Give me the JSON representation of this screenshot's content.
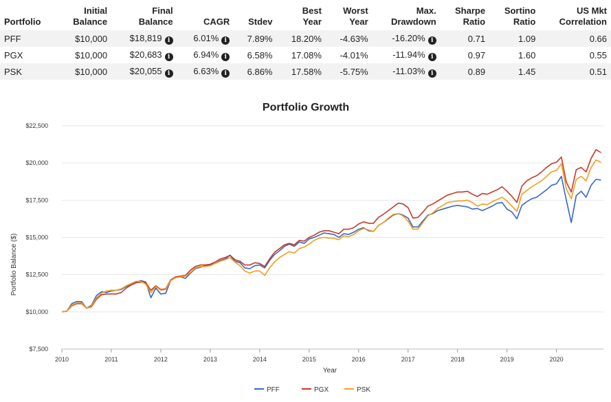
{
  "table": {
    "headers": [
      {
        "l1": "",
        "l2": "Portfolio",
        "align": "l"
      },
      {
        "l1": "Initial",
        "l2": "Balance",
        "align": "r"
      },
      {
        "l1": "Final",
        "l2": "Balance",
        "align": "r"
      },
      {
        "l1": "",
        "l2": "CAGR",
        "align": "r"
      },
      {
        "l1": "",
        "l2": "Stdev",
        "align": "r"
      },
      {
        "l1": "Best",
        "l2": "Year",
        "align": "r"
      },
      {
        "l1": "Worst",
        "l2": "Year",
        "align": "r"
      },
      {
        "l1": "Max.",
        "l2": "Drawdown",
        "align": "r"
      },
      {
        "l1": "Sharpe",
        "l2": "Ratio",
        "align": "r"
      },
      {
        "l1": "Sortino",
        "l2": "Ratio",
        "align": "r"
      },
      {
        "l1": "US Mkt",
        "l2": "Correlation",
        "align": "r"
      }
    ],
    "rows": [
      {
        "portfolio": "PFF",
        "initial": "$10,000",
        "final": "$18,819",
        "cagr": "6.01%",
        "stdev": "7.89%",
        "best": "18.20%",
        "worst": "-4.63%",
        "maxdd": "-16.20%",
        "sharpe": "0.71",
        "sortino": "1.09",
        "corr": "0.66"
      },
      {
        "portfolio": "PGX",
        "initial": "$10,000",
        "final": "$20,683",
        "cagr": "6.94%",
        "stdev": "6.58%",
        "best": "17.08%",
        "worst": "-4.01%",
        "maxdd": "-11.94%",
        "sharpe": "0.97",
        "sortino": "1.60",
        "corr": "0.55"
      },
      {
        "portfolio": "PSK",
        "initial": "$10,000",
        "final": "$20,055",
        "cagr": "6.63%",
        "stdev": "6.86%",
        "best": "17.58%",
        "worst": "-5.75%",
        "maxdd": "-11.03%",
        "sharpe": "0.89",
        "sortino": "1.45",
        "corr": "0.51"
      }
    ],
    "info_icon": "info-circle-icon"
  },
  "chart_data": {
    "type": "line",
    "title": "Portfolio Growth",
    "xlabel": "Year",
    "ylabel": "Portfolio Balance ($)",
    "ylim": [
      7500,
      22500
    ],
    "xlim": [
      2010,
      2020.95
    ],
    "yticks": [
      7500,
      10000,
      12500,
      15000,
      17500,
      20000,
      22500
    ],
    "ytick_labels": [
      "$7,500",
      "$10,000",
      "$12,500",
      "$15,000",
      "$17,500",
      "$20,000",
      "$22,500"
    ],
    "xticks": [
      2010,
      2011,
      2012,
      2013,
      2014,
      2015,
      2016,
      2017,
      2018,
      2019,
      2020
    ],
    "xtick_labels": [
      "2010",
      "2011",
      "2012",
      "2013",
      "2014",
      "2015",
      "2016",
      "2017",
      "2018",
      "2019",
      "2020"
    ],
    "grid": "horizontal",
    "legend_position": "bottom-center",
    "series": [
      {
        "name": "PFF",
        "color": "#3566c4",
        "x": [
          2010.0,
          2010.1,
          2010.2,
          2010.3,
          2010.4,
          2010.5,
          2010.6,
          2010.7,
          2010.8,
          2010.9,
          2011.0,
          2011.1,
          2011.2,
          2011.3,
          2011.4,
          2011.5,
          2011.6,
          2011.7,
          2011.8,
          2011.9,
          2012.0,
          2012.1,
          2012.2,
          2012.3,
          2012.4,
          2012.5,
          2012.6,
          2012.7,
          2012.8,
          2012.9,
          2013.0,
          2013.1,
          2013.2,
          2013.3,
          2013.4,
          2013.5,
          2013.6,
          2013.7,
          2013.8,
          2013.9,
          2014.0,
          2014.1,
          2014.2,
          2014.3,
          2014.4,
          2014.5,
          2014.6,
          2014.7,
          2014.8,
          2014.9,
          2015.0,
          2015.1,
          2015.2,
          2015.3,
          2015.4,
          2015.5,
          2015.6,
          2015.7,
          2015.8,
          2015.9,
          2016.0,
          2016.1,
          2016.2,
          2016.3,
          2016.4,
          2016.5,
          2016.6,
          2016.7,
          2016.8,
          2016.9,
          2017.0,
          2017.1,
          2017.2,
          2017.3,
          2017.4,
          2017.5,
          2017.6,
          2017.7,
          2017.8,
          2017.9,
          2018.0,
          2018.1,
          2018.2,
          2018.3,
          2018.4,
          2018.5,
          2018.6,
          2018.7,
          2018.8,
          2018.9,
          2019.0,
          2019.1,
          2019.2,
          2019.3,
          2019.4,
          2019.5,
          2019.6,
          2019.7,
          2019.8,
          2019.9,
          2020.0,
          2020.1,
          2020.2,
          2020.3,
          2020.4,
          2020.5,
          2020.6,
          2020.7,
          2020.8,
          2020.9
        ],
        "y": [
          10000,
          10050,
          10550,
          10700,
          10680,
          10250,
          10450,
          11100,
          11350,
          11300,
          11400,
          11450,
          11500,
          11700,
          11850,
          12000,
          12100,
          12000,
          10950,
          11600,
          11200,
          11250,
          12100,
          12300,
          12350,
          12250,
          12600,
          12900,
          13000,
          13100,
          13150,
          13250,
          13450,
          13550,
          13800,
          13400,
          13300,
          12950,
          12900,
          13100,
          13150,
          12950,
          13450,
          13850,
          14100,
          14400,
          14550,
          14400,
          14700,
          14600,
          14900,
          15000,
          15150,
          15300,
          15250,
          15200,
          15000,
          15250,
          15200,
          15350,
          15550,
          15650,
          15450,
          15400,
          15800,
          16000,
          16250,
          16500,
          16600,
          16500,
          16300,
          15700,
          15700,
          16100,
          16500,
          16600,
          16800,
          16900,
          17000,
          17100,
          17150,
          17100,
          17050,
          16900,
          16950,
          16800,
          16950,
          17100,
          17300,
          17350,
          16900,
          16700,
          16250,
          17150,
          17400,
          17600,
          17700,
          17950,
          18200,
          18500,
          18600,
          19100,
          17500,
          16000,
          17800,
          18100,
          17700,
          18500,
          18900,
          18850
        ]
      },
      {
        "name": "PGX",
        "color": "#c6382a",
        "x": [
          2010.0,
          2010.1,
          2010.2,
          2010.3,
          2010.4,
          2010.5,
          2010.6,
          2010.7,
          2010.8,
          2010.9,
          2011.0,
          2011.1,
          2011.2,
          2011.3,
          2011.4,
          2011.5,
          2011.6,
          2011.7,
          2011.8,
          2011.9,
          2012.0,
          2012.1,
          2012.2,
          2012.3,
          2012.4,
          2012.5,
          2012.6,
          2012.7,
          2012.8,
          2012.9,
          2013.0,
          2013.1,
          2013.2,
          2013.3,
          2013.4,
          2013.5,
          2013.6,
          2013.7,
          2013.8,
          2013.9,
          2014.0,
          2014.1,
          2014.2,
          2014.3,
          2014.4,
          2014.5,
          2014.6,
          2014.7,
          2014.8,
          2014.9,
          2015.0,
          2015.1,
          2015.2,
          2015.3,
          2015.4,
          2015.5,
          2015.6,
          2015.7,
          2015.8,
          2015.9,
          2016.0,
          2016.1,
          2016.2,
          2016.3,
          2016.4,
          2016.5,
          2016.6,
          2016.7,
          2016.8,
          2016.9,
          2017.0,
          2017.1,
          2017.2,
          2017.3,
          2017.4,
          2017.5,
          2017.6,
          2017.7,
          2017.8,
          2017.9,
          2018.0,
          2018.1,
          2018.2,
          2018.3,
          2018.4,
          2018.5,
          2018.6,
          2018.7,
          2018.8,
          2018.9,
          2019.0,
          2019.1,
          2019.2,
          2019.3,
          2019.4,
          2019.5,
          2019.6,
          2019.7,
          2019.8,
          2019.9,
          2020.0,
          2020.1,
          2020.2,
          2020.3,
          2020.4,
          2020.5,
          2020.6,
          2020.7,
          2020.8,
          2020.9
        ],
        "y": [
          10000,
          10050,
          10400,
          10550,
          10550,
          10250,
          10350,
          10850,
          11150,
          11200,
          11200,
          11200,
          11300,
          11600,
          11800,
          11950,
          12000,
          11950,
          11450,
          11750,
          11500,
          11550,
          12150,
          12350,
          12400,
          12450,
          12800,
          13050,
          13150,
          13150,
          13200,
          13350,
          13550,
          13650,
          13800,
          13500,
          13400,
          13150,
          13150,
          13300,
          13250,
          13050,
          13550,
          14000,
          14250,
          14500,
          14600,
          14500,
          14800,
          14750,
          15000,
          15150,
          15350,
          15450,
          15450,
          15350,
          15250,
          15550,
          15550,
          15650,
          15900,
          16050,
          15950,
          15950,
          16350,
          16550,
          16800,
          17050,
          17300,
          17250,
          17000,
          16300,
          16350,
          16700,
          17100,
          17250,
          17450,
          17650,
          17850,
          17950,
          18050,
          18050,
          18100,
          17900,
          17750,
          17950,
          17900,
          18050,
          18200,
          18400,
          18100,
          17750,
          17350,
          18450,
          18800,
          19000,
          19150,
          19400,
          19700,
          19950,
          20050,
          20400,
          18700,
          18050,
          19550,
          19700,
          19400,
          20300,
          20900,
          20700
        ]
      },
      {
        "name": "PSK",
        "color": "#f39c1c",
        "x": [
          2010.0,
          2010.1,
          2010.2,
          2010.3,
          2010.4,
          2010.5,
          2010.6,
          2010.7,
          2010.8,
          2010.9,
          2011.0,
          2011.1,
          2011.2,
          2011.3,
          2011.4,
          2011.5,
          2011.6,
          2011.7,
          2011.8,
          2011.9,
          2012.0,
          2012.1,
          2012.2,
          2012.3,
          2012.4,
          2012.5,
          2012.6,
          2012.7,
          2012.8,
          2012.9,
          2013.0,
          2013.1,
          2013.2,
          2013.3,
          2013.4,
          2013.5,
          2013.6,
          2013.7,
          2013.8,
          2013.9,
          2014.0,
          2014.1,
          2014.2,
          2014.3,
          2014.4,
          2014.5,
          2014.6,
          2014.7,
          2014.8,
          2014.9,
          2015.0,
          2015.1,
          2015.2,
          2015.3,
          2015.4,
          2015.5,
          2015.6,
          2015.7,
          2015.8,
          2015.9,
          2016.0,
          2016.1,
          2016.2,
          2016.3,
          2016.4,
          2016.5,
          2016.6,
          2016.7,
          2016.8,
          2016.9,
          2017.0,
          2017.1,
          2017.2,
          2017.3,
          2017.4,
          2017.5,
          2017.6,
          2017.7,
          2017.8,
          2017.9,
          2018.0,
          2018.1,
          2018.2,
          2018.3,
          2018.4,
          2018.5,
          2018.6,
          2018.7,
          2018.8,
          2018.9,
          2019.0,
          2019.1,
          2019.2,
          2019.3,
          2019.4,
          2019.5,
          2019.6,
          2019.7,
          2019.8,
          2019.9,
          2020.0,
          2020.1,
          2020.2,
          2020.3,
          2020.4,
          2020.5,
          2020.6,
          2020.7,
          2020.8,
          2020.9
        ],
        "y": [
          10000,
          10050,
          10450,
          10600,
          10600,
          10250,
          10400,
          10950,
          11250,
          11400,
          11450,
          11450,
          11550,
          11750,
          11900,
          12050,
          12050,
          11850,
          11300,
          11700,
          11450,
          11500,
          12100,
          12300,
          12350,
          12400,
          12650,
          12950,
          13050,
          13050,
          13100,
          13250,
          13400,
          13500,
          13650,
          13350,
          13100,
          12750,
          12600,
          12750,
          12750,
          12450,
          12950,
          13350,
          13650,
          13850,
          14050,
          13950,
          14250,
          14350,
          14550,
          14800,
          14950,
          15000,
          14950,
          14950,
          14850,
          15100,
          15050,
          15200,
          15450,
          15600,
          15500,
          15400,
          15800,
          16000,
          16300,
          16550,
          16600,
          16450,
          16100,
          15550,
          15550,
          16000,
          16450,
          16650,
          16950,
          17150,
          17350,
          17400,
          17450,
          17450,
          17500,
          17350,
          17100,
          17250,
          17200,
          17400,
          17550,
          17700,
          17450,
          17100,
          16750,
          17900,
          18150,
          18400,
          18600,
          18800,
          19100,
          19400,
          19500,
          19950,
          18250,
          17600,
          18900,
          19100,
          18800,
          19700,
          20200,
          20050
        ]
      }
    ]
  }
}
